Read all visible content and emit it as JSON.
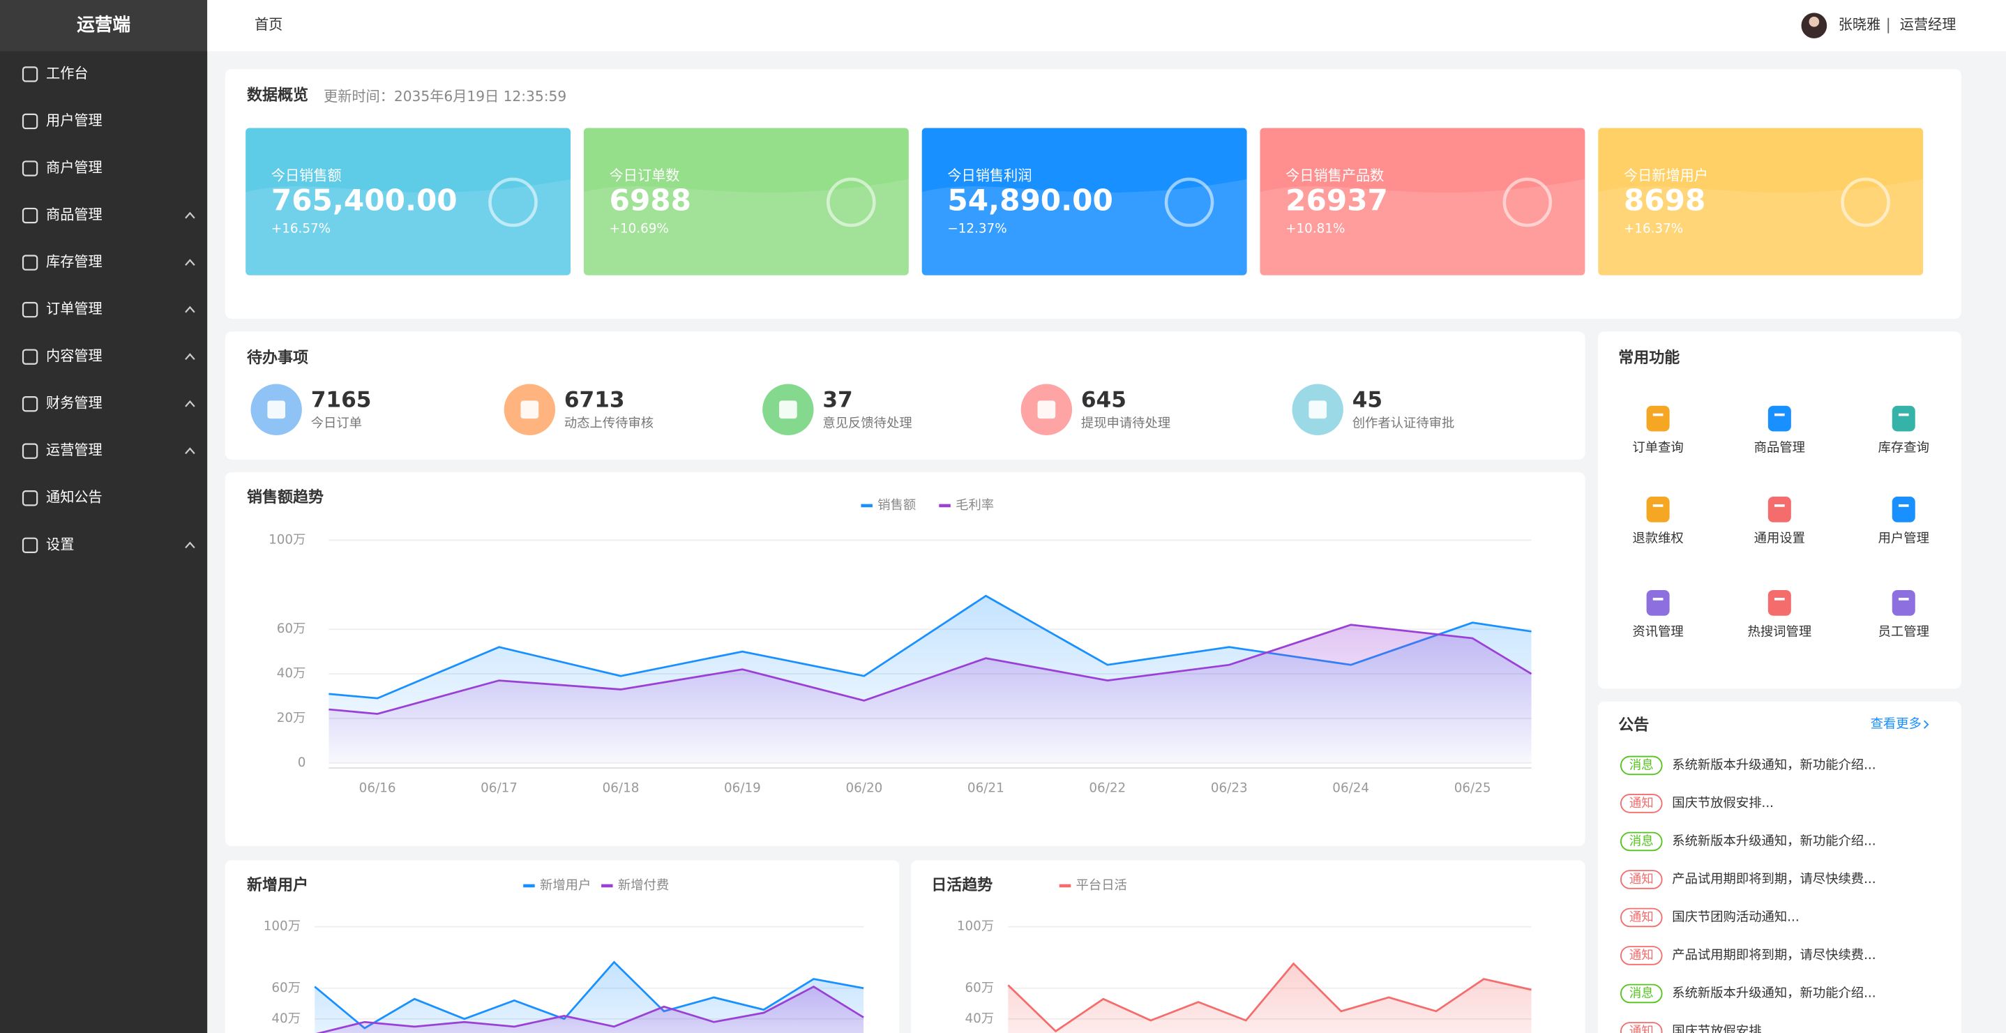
{
  "sidebar": {
    "brand": "运营端",
    "menu": [
      {
        "label": "工作台"
      },
      {
        "label": "用户管理"
      },
      {
        "label": "商户管理"
      },
      {
        "label": "商品管理",
        "expandable": true
      },
      {
        "label": "库存管理",
        "expandable": true
      },
      {
        "label": "订单管理",
        "expandable": true
      },
      {
        "label": "内容管理",
        "expandable": true
      },
      {
        "label": "财务管理",
        "expandable": true
      },
      {
        "label": "运营管理",
        "expandable": true
      },
      {
        "label": "通知公告"
      },
      {
        "label": "设置",
        "expandable": true
      }
    ]
  },
  "header": {
    "breadcrumb": "首页",
    "user_name": "张晓雅",
    "user_role": "运营经理"
  },
  "overview": {
    "title": "数据概览",
    "updated": "更新时间：2035年6月19日  12:35:59",
    "cards": [
      {
        "label": "今日销售额",
        "value": "765,400.00",
        "change": "+16.57%",
        "color": "#5ecbe7"
      },
      {
        "label": "今日订单数",
        "value": "6988",
        "change": "+10.69%",
        "color": "#95df8a"
      },
      {
        "label": "今日销售利润",
        "value": "54,890.00",
        "change": "−12.37%",
        "color": "#1890ff"
      },
      {
        "label": "今日销售产品数",
        "value": "26937",
        "change": "+10.81%",
        "color": "#ff8f8f"
      },
      {
        "label": "今日新增用户",
        "value": "8698",
        "change": "+16.37%",
        "color": "#ffd066"
      }
    ]
  },
  "todo": {
    "title": "待办事项",
    "items": [
      {
        "count": 7165,
        "label": "今日订单",
        "color": "#8fc3f5"
      },
      {
        "count": 6713,
        "label": "动态上传待审核",
        "color": "#ffb37f"
      },
      {
        "count": 37,
        "label": "意见反馈待处理",
        "color": "#85d98e"
      },
      {
        "count": 645,
        "label": "提现申请待处理",
        "color": "#ffa4a4"
      },
      {
        "count": 45,
        "label": "创作者认证待审批",
        "color": "#9bd9e6"
      }
    ]
  },
  "shortcuts": {
    "title": "常用功能",
    "items": [
      {
        "label": "订单查询",
        "color": "#f5a623"
      },
      {
        "label": "商品管理",
        "color": "#1890ff"
      },
      {
        "label": "库存查询",
        "color": "#36b3a8"
      },
      {
        "label": "退款维权",
        "color": "#f5a623"
      },
      {
        "label": "通用设置",
        "color": "#f56c6c"
      },
      {
        "label": "用户管理",
        "color": "#1890ff"
      },
      {
        "label": "资讯管理",
        "color": "#8e6fe0"
      },
      {
        "label": "热搜词管理",
        "color": "#f56c6c"
      },
      {
        "label": "员工管理",
        "color": "#8e6fe0"
      }
    ]
  },
  "notices": {
    "title": "公告",
    "more": "查看更多",
    "items": [
      {
        "tag": "消息",
        "tag_color": "#52c41a",
        "text": "系统新版本升级通知，新功能介绍..."
      },
      {
        "tag": "通知",
        "tag_color": "#f56c6c",
        "text": "国庆节放假安排..."
      },
      {
        "tag": "消息",
        "tag_color": "#52c41a",
        "text": "系统新版本升级通知，新功能介绍..."
      },
      {
        "tag": "通知",
        "tag_color": "#f56c6c",
        "text": "产品试用期即将到期，请尽快续费..."
      },
      {
        "tag": "通知",
        "tag_color": "#f56c6c",
        "text": "国庆节团购活动通知..."
      },
      {
        "tag": "通知",
        "tag_color": "#f56c6c",
        "text": "产品试用期即将到期，请尽快续费..."
      },
      {
        "tag": "消息",
        "tag_color": "#52c41a",
        "text": "系统新版本升级通知，新功能介绍..."
      },
      {
        "tag": "通知",
        "tag_color": "#f56c6c",
        "text": "国庆节放假安排..."
      }
    ]
  },
  "charts": [
    {
      "type": "line",
      "title": "销售额趋势",
      "categories": [
        null,
        "06/16",
        "06/17",
        "06/18",
        "06/19",
        "06/20",
        "06/21",
        "06/22",
        "06/23",
        "06/24",
        "06/25",
        null
      ],
      "series": [
        {
          "name": "销售额",
          "color": "#1890ff",
          "values": [
            31,
            29,
            52,
            39,
            50,
            39,
            75,
            44,
            52,
            44,
            63,
            59
          ]
        },
        {
          "name": "毛利率",
          "color": "#9b40d6",
          "values": [
            24,
            22,
            37,
            33,
            42,
            28,
            47,
            37,
            44,
            62,
            56,
            40
          ]
        }
      ],
      "ylim": [
        0,
        100
      ],
      "yticks": [
        {
          "value": 100,
          "label": "100万"
        },
        {
          "value": 60,
          "label": "60万"
        },
        {
          "value": 40,
          "label": "40万"
        },
        {
          "value": 20,
          "label": "20万"
        },
        0
      ],
      "grid": true
    },
    {
      "type": "line",
      "title": "新增用户",
      "series": [
        {
          "name": "新增用户",
          "color": "#1890ff",
          "values": [
            61,
            34,
            53,
            40,
            52,
            40,
            77,
            45,
            54,
            46,
            66,
            60
          ]
        },
        {
          "name": "新增付费",
          "color": "#9b40d6",
          "values": [
            30,
            38,
            35,
            38,
            35,
            42,
            35,
            48,
            38,
            44,
            61,
            41
          ]
        }
      ],
      "ylim": [
        0,
        100
      ],
      "yticks": [
        {
          "value": 100,
          "label": "100万"
        },
        {
          "value": 60,
          "label": "60万"
        },
        {
          "value": 40,
          "label": "40万"
        }
      ],
      "grid": true
    },
    {
      "type": "line",
      "title": "日活趋势",
      "series": [
        {
          "name": "平台日活",
          "color": "#f56c6c",
          "values": [
            62,
            32,
            53,
            39,
            51,
            39,
            76,
            45,
            54,
            45,
            66,
            59
          ]
        }
      ],
      "ylim": [
        0,
        100
      ],
      "yticks": [
        {
          "value": 100,
          "label": "100万"
        },
        {
          "value": 60,
          "label": "60万"
        },
        {
          "value": 40,
          "label": "40万"
        }
      ],
      "grid": true
    }
  ]
}
